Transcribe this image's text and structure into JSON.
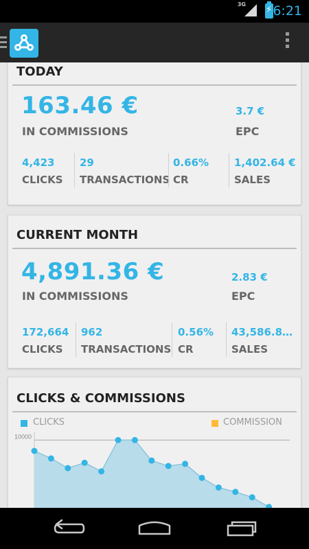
{
  "status_bar": {
    "network": "3G",
    "time": "6:21",
    "battery_icon": "charging-battery-icon",
    "signal_icon": "signal-icon"
  },
  "action_bar": {
    "logo_icon": "share-network-icon",
    "drawer_icon": "drawer-icon",
    "overflow_icon": "overflow-menu-icon"
  },
  "today": {
    "title": "TODAY",
    "commissions": {
      "value": "163.46 €",
      "label": "IN COMMISSIONS"
    },
    "epc": {
      "value": "3.7 €",
      "label": "EPC"
    },
    "stats": [
      {
        "value": "4,423",
        "label": "CLICKS"
      },
      {
        "value": "29",
        "label": "TRANSACTIONS"
      },
      {
        "value": "0.66%",
        "label": "CR"
      },
      {
        "value": "1,402.64 €",
        "label": "SALES"
      }
    ]
  },
  "current_month": {
    "title": "CURRENT MONTH",
    "commissions": {
      "value": "4,891.36 €",
      "label": "IN COMMISSIONS"
    },
    "epc": {
      "value": "2.83 €",
      "label": "EPC"
    },
    "stats": [
      {
        "value": "172,664",
        "label": "CLICKS"
      },
      {
        "value": "962",
        "label": "TRANSACTIONS"
      },
      {
        "value": "0.56%",
        "label": "CR"
      },
      {
        "value": "43,586.8…",
        "label": "SALES"
      }
    ]
  },
  "chart_section": {
    "title": "CLICKS & COMMISSIONS"
  },
  "chart_data": {
    "type": "area",
    "title": "CLICKS & COMMISSIONS",
    "series": [
      {
        "name": "CLICKS",
        "color": "#33b5e5",
        "values": [
          9500,
          9150,
          8700,
          8950,
          8550,
          10000,
          10000,
          9050,
          8800,
          8900,
          8250,
          7800,
          7600,
          7350,
          6900,
          5000
        ]
      },
      {
        "name": "COMMISSION",
        "color": "#ffbb33",
        "values": []
      }
    ],
    "y_ticks": [
      "10000"
    ],
    "legend": "top",
    "grid": true
  },
  "nav_bar": {
    "back_icon": "back-icon",
    "home_icon": "home-icon",
    "recents_icon": "recent-apps-icon"
  },
  "colors": {
    "accent": "#33b5e5",
    "commission": "#ffbb33",
    "status_bar": "#000000",
    "action_bar": "#262626"
  }
}
